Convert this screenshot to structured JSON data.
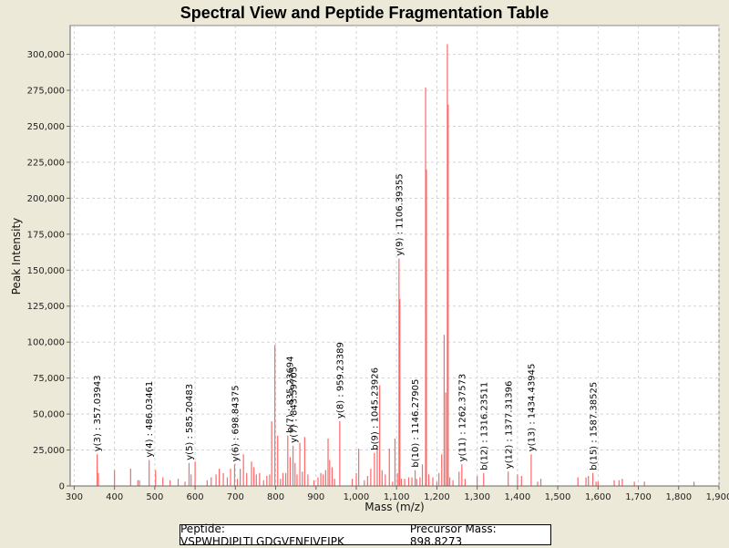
{
  "chart_data": {
    "type": "bar",
    "title": "Spectral View and Peptide Fragmentation Table",
    "xlabel": "Mass (m/z)",
    "ylabel": "Peak Intensity",
    "xlim": [
      290,
      1900
    ],
    "ylim": [
      0,
      320000
    ],
    "x_ticks": [
      300,
      400,
      500,
      600,
      700,
      800,
      900,
      1000,
      1100,
      1200,
      1300,
      1400,
      1500,
      1600,
      1700,
      1800,
      1900
    ],
    "x_tick_labels": [
      "300",
      "400",
      "500",
      "600",
      "700",
      "800",
      "900",
      "1,000",
      "1,100",
      "1,200",
      "1,300",
      "1,400",
      "1,500",
      "1,600",
      "1,700",
      "1,800",
      "1,900"
    ],
    "y_ticks": [
      0,
      25000,
      50000,
      75000,
      100000,
      125000,
      150000,
      175000,
      200000,
      225000,
      250000,
      275000,
      300000
    ],
    "y_tick_labels": [
      "0",
      "25,000",
      "50,000",
      "75,000",
      "100,000",
      "125,000",
      "150,000",
      "175,000",
      "200,000",
      "225,000",
      "250,000",
      "275,000",
      "300,000"
    ],
    "grid": true,
    "peak_color": "#ff6666",
    "peaks": [
      [
        357,
        22000
      ],
      [
        360,
        9000
      ],
      [
        400,
        11000
      ],
      [
        440,
        12000
      ],
      [
        458,
        4000
      ],
      [
        462,
        4000
      ],
      [
        486,
        18000
      ],
      [
        502,
        11000
      ],
      [
        520,
        6000
      ],
      [
        538,
        4000
      ],
      [
        558,
        5000
      ],
      [
        575,
        3000
      ],
      [
        585,
        16000
      ],
      [
        590,
        8000
      ],
      [
        600,
        17000
      ],
      [
        630,
        4000
      ],
      [
        640,
        6000
      ],
      [
        652,
        8000
      ],
      [
        660,
        12000
      ],
      [
        670,
        9000
      ],
      [
        680,
        6000
      ],
      [
        688,
        12000
      ],
      [
        698,
        15000
      ],
      [
        705,
        5000
      ],
      [
        712,
        12000
      ],
      [
        720,
        22000
      ],
      [
        728,
        9000
      ],
      [
        740,
        17000
      ],
      [
        746,
        13000
      ],
      [
        752,
        8000
      ],
      [
        760,
        9000
      ],
      [
        770,
        4000
      ],
      [
        778,
        7000
      ],
      [
        785,
        8000
      ],
      [
        790,
        45000
      ],
      [
        798,
        98000
      ],
      [
        805,
        35000
      ],
      [
        812,
        5000
      ],
      [
        818,
        9000
      ],
      [
        825,
        9000
      ],
      [
        830,
        35000
      ],
      [
        836,
        20000
      ],
      [
        843,
        28000
      ],
      [
        848,
        16000
      ],
      [
        853,
        8000
      ],
      [
        860,
        30000
      ],
      [
        866,
        10000
      ],
      [
        872,
        34000
      ],
      [
        880,
        8000
      ],
      [
        895,
        4000
      ],
      [
        905,
        6000
      ],
      [
        912,
        9000
      ],
      [
        918,
        8000
      ],
      [
        924,
        11000
      ],
      [
        930,
        33000
      ],
      [
        934,
        18000
      ],
      [
        940,
        13000
      ],
      [
        946,
        5000
      ],
      [
        959,
        45000
      ],
      [
        990,
        5000
      ],
      [
        1000,
        9000
      ],
      [
        1006,
        26000
      ],
      [
        1020,
        4000
      ],
      [
        1028,
        7000
      ],
      [
        1036,
        12000
      ],
      [
        1045,
        23000
      ],
      [
        1052,
        28000
      ],
      [
        1058,
        70000
      ],
      [
        1064,
        11000
      ],
      [
        1072,
        8000
      ],
      [
        1082,
        26000
      ],
      [
        1090,
        3000
      ],
      [
        1096,
        33000
      ],
      [
        1102,
        9000
      ],
      [
        1106,
        158000
      ],
      [
        1108,
        130000
      ],
      [
        1112,
        5000
      ],
      [
        1120,
        5000
      ],
      [
        1130,
        6000
      ],
      [
        1138,
        6000
      ],
      [
        1146,
        11000
      ],
      [
        1150,
        5000
      ],
      [
        1158,
        6000
      ],
      [
        1164,
        15000
      ],
      [
        1172,
        277000
      ],
      [
        1174,
        220000
      ],
      [
        1180,
        8000
      ],
      [
        1190,
        6000
      ],
      [
        1200,
        3000
      ],
      [
        1205,
        9000
      ],
      [
        1212,
        22000
      ],
      [
        1218,
        105000
      ],
      [
        1222,
        65000
      ],
      [
        1226,
        307000
      ],
      [
        1228,
        265000
      ],
      [
        1232,
        6000
      ],
      [
        1240,
        4000
      ],
      [
        1255,
        10000
      ],
      [
        1262,
        15000
      ],
      [
        1270,
        5000
      ],
      [
        1300,
        7000
      ],
      [
        1316,
        9000
      ],
      [
        1377,
        10000
      ],
      [
        1400,
        8000
      ],
      [
        1410,
        7000
      ],
      [
        1434,
        22000
      ],
      [
        1450,
        3000
      ],
      [
        1458,
        5000
      ],
      [
        1550,
        6000
      ],
      [
        1570,
        6000
      ],
      [
        1576,
        7000
      ],
      [
        1587,
        9000
      ],
      [
        1595,
        3000
      ],
      [
        1600,
        3000
      ],
      [
        1640,
        4000
      ],
      [
        1652,
        4000
      ],
      [
        1660,
        5000
      ],
      [
        1690,
        3000
      ],
      [
        1715,
        3000
      ],
      [
        1838,
        3000
      ]
    ],
    "annotations": [
      {
        "x": 357.03943,
        "label": "y(3) : 357.03943"
      },
      {
        "x": 486.03461,
        "label": "y(4) : 486.03461"
      },
      {
        "x": 585.20483,
        "label": "y(5) : 585.20483"
      },
      {
        "x": 698.84375,
        "label": "y(6) : 698.84375"
      },
      {
        "x": 835.23694,
        "label": "b(7) : 835.23694"
      },
      {
        "x": 843.59705,
        "label": "y(7) : 843.59705"
      },
      {
        "x": 959.23389,
        "label": "y(8) : 959.23389"
      },
      {
        "x": 1045.23926,
        "label": "b(9) : 1045.23926"
      },
      {
        "x": 1106.39355,
        "label": "y(9) : 1106.39355"
      },
      {
        "x": 1146.27905,
        "label": "b(10) : 1146.27905"
      },
      {
        "x": 1262.37573,
        "label": "y(11) : 1262.37573"
      },
      {
        "x": 1316.23511,
        "label": "b(12) : 1316.23511"
      },
      {
        "x": 1377.31396,
        "label": "y(12) : 1377.31396"
      },
      {
        "x": 1434.43945,
        "label": "y(13) : 1434.43945"
      },
      {
        "x": 1587.38525,
        "label": "b(15) : 1587.38525"
      }
    ]
  },
  "footer": {
    "peptide_label": "Peptide: VSPWHDIPLTLGDGVFNFIVEIPK",
    "precursor_label": "Precursor Mass: 898.8273"
  }
}
